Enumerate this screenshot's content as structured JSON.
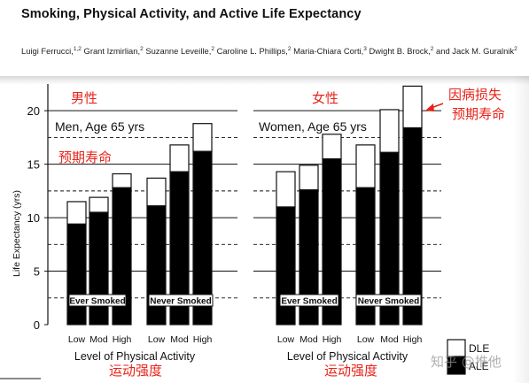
{
  "paper": {
    "title": "Smoking, Physical Activity, and Active Life Expectancy",
    "authors": [
      {
        "name": "Luigi Ferrucci,",
        "sup": "1,2",
        "after": " "
      },
      {
        "name": "Grant Izmirlian,",
        "sup": "2",
        "after": " "
      },
      {
        "name": "Suzanne Leveille,",
        "sup": "2",
        "after": " "
      },
      {
        "name": "Caroline L. Phillips,",
        "sup": "2",
        "after": " "
      },
      {
        "name": "Maria-Chiara Corti,",
        "sup": "3",
        "after": " "
      },
      {
        "name": "Dwight B. Brock,",
        "sup": "2",
        "after": " "
      },
      {
        "name": "and Jack M. Guralnik",
        "sup": "2",
        "after": ""
      }
    ]
  },
  "chart_data": [
    {
      "type": "bar",
      "title": "Men, Age 65 yrs",
      "xlabel": "Level of Physical Activity",
      "ylabel": "Life Expectancy (yrs)",
      "ylim": [
        0,
        22
      ],
      "yticks": [
        0,
        5,
        10,
        15,
        20
      ],
      "categories": [
        "Low",
        "Mod",
        "High",
        "Low",
        "Mod",
        "High"
      ],
      "groups": [
        "Ever Smoked",
        "Never Smoked"
      ],
      "series": [
        {
          "name": "ALE",
          "values": [
            9.4,
            10.5,
            12.8,
            11.1,
            14.3,
            16.2
          ]
        },
        {
          "name": "DLE",
          "values": [
            2.1,
            1.4,
            1.3,
            2.6,
            2.5,
            2.6
          ]
        }
      ],
      "totals": [
        11.5,
        11.9,
        14.1,
        13.7,
        16.8,
        18.8
      ],
      "annotations": [
        "男性",
        "预期寿命",
        "运动强度"
      ]
    },
    {
      "type": "bar",
      "title": "Women, Age 65 yrs",
      "xlabel": "Level of Physical Activity",
      "ylabel": "",
      "ylim": [
        0,
        22
      ],
      "categories": [
        "Low",
        "Mod",
        "High",
        "Low",
        "Mod",
        "High"
      ],
      "groups": [
        "Ever Smoked",
        "Never Smoked"
      ],
      "series": [
        {
          "name": "ALE",
          "values": [
            11.0,
            12.6,
            15.5,
            12.8,
            16.1,
            18.4
          ]
        },
        {
          "name": "DLE",
          "values": [
            3.3,
            2.3,
            2.3,
            4.0,
            4.0,
            3.9
          ]
        }
      ],
      "totals": [
        14.3,
        14.9,
        17.8,
        16.8,
        20.1,
        22.3
      ],
      "annotations": [
        "女性",
        "因病损失",
        "预期寿命",
        "运动强度"
      ]
    }
  ],
  "legend": [
    {
      "label": "DLE",
      "fill": "#ffffff"
    },
    {
      "label": "ALE",
      "fill": "#000000"
    }
  ],
  "colors": {
    "annotation": "#e8231a",
    "bar_ale": "#000000",
    "bar_dle": "#ffffff"
  },
  "watermark": "知乎 @推他"
}
